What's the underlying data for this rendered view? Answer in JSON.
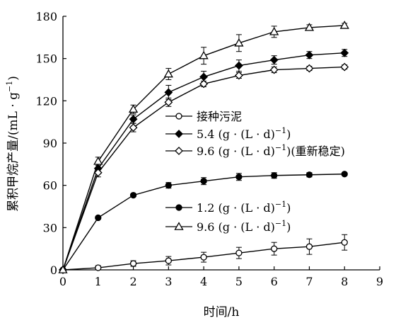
{
  "chart_data": {
    "type": "line",
    "title": "",
    "xlabel": "时间/h",
    "ylabel": "累积甲烷产量/(mL · g⁻¹)",
    "x": [
      0,
      1,
      2,
      3,
      4,
      5,
      6,
      7,
      8
    ],
    "xlim": [
      0,
      9
    ],
    "ylim": [
      0,
      180
    ],
    "xticks": [
      "0",
      "1",
      "2",
      "3",
      "4",
      "5",
      "6",
      "7",
      "8",
      "9"
    ],
    "yticks": [
      "0",
      "30",
      "60",
      "90",
      "120",
      "150",
      "180"
    ],
    "grid": false,
    "series": [
      {
        "name": "接种污泥",
        "marker": "circle-open",
        "values": [
          0,
          1.5,
          4.5,
          6.5,
          9,
          12,
          15,
          16.5,
          19.5
        ],
        "errors": [
          0,
          1.5,
          2,
          3,
          3.5,
          4,
          4.5,
          5.5,
          5.5
        ]
      },
      {
        "name": "5.4 (g · (L · d)⁻¹)",
        "marker": "diamond-filled",
        "values": [
          0,
          72,
          107,
          126,
          137,
          145,
          149,
          152.5,
          154
        ],
        "errors": [
          0,
          3,
          3,
          5,
          4,
          4,
          3,
          2.5,
          2.5
        ]
      },
      {
        "name": "9.6 (g · (L · d)⁻¹)(重新稳定)",
        "marker": "diamond-open",
        "values": [
          0,
          69,
          101,
          119,
          132,
          138,
          142,
          143,
          144
        ],
        "errors": [
          0,
          3,
          3,
          3,
          2,
          2,
          2,
          1.5,
          1.5
        ]
      },
      {
        "name": "1.2 (g · (L · d)⁻¹)",
        "marker": "circle-filled",
        "values": [
          0,
          37,
          53,
          60,
          63,
          66,
          67,
          67.5,
          68
        ],
        "errors": [
          0,
          1,
          1,
          2,
          2.5,
          2.5,
          2,
          1.5,
          1
        ]
      },
      {
        "name": "9.6 (g · (L · d)⁻¹)",
        "marker": "triangle-open",
        "values": [
          0,
          77,
          114,
          139,
          152,
          161,
          169,
          172,
          173.5
        ],
        "errors": [
          0,
          3,
          3,
          4,
          6,
          6,
          4,
          2,
          1.5
        ]
      }
    ],
    "legend": [
      {
        "series": 0,
        "label_main": "接种污泥",
        "label_sup": ""
      },
      {
        "series": 1,
        "label_main": "5.4 (g · (L · d)",
        "label_sup": "−1",
        "label_close": ")",
        "label_tail": ""
      },
      {
        "series": 2,
        "label_main": "9.6 (g · (L · d)",
        "label_sup": "−1",
        "label_close": ")",
        "label_tail": "(重新稳定)"
      },
      {
        "series": 3,
        "label_main": "1.2 (g · (L · d)",
        "label_sup": "−1",
        "label_close": ")",
        "label_tail": ""
      },
      {
        "series": 4,
        "label_main": "9.6 (g · (L · d)",
        "label_sup": "−1",
        "label_close": ")",
        "label_tail": ""
      }
    ],
    "ylabel_main": "累积甲烷产量/(mL · g",
    "ylabel_sup": "−1",
    "ylabel_close": ")"
  }
}
